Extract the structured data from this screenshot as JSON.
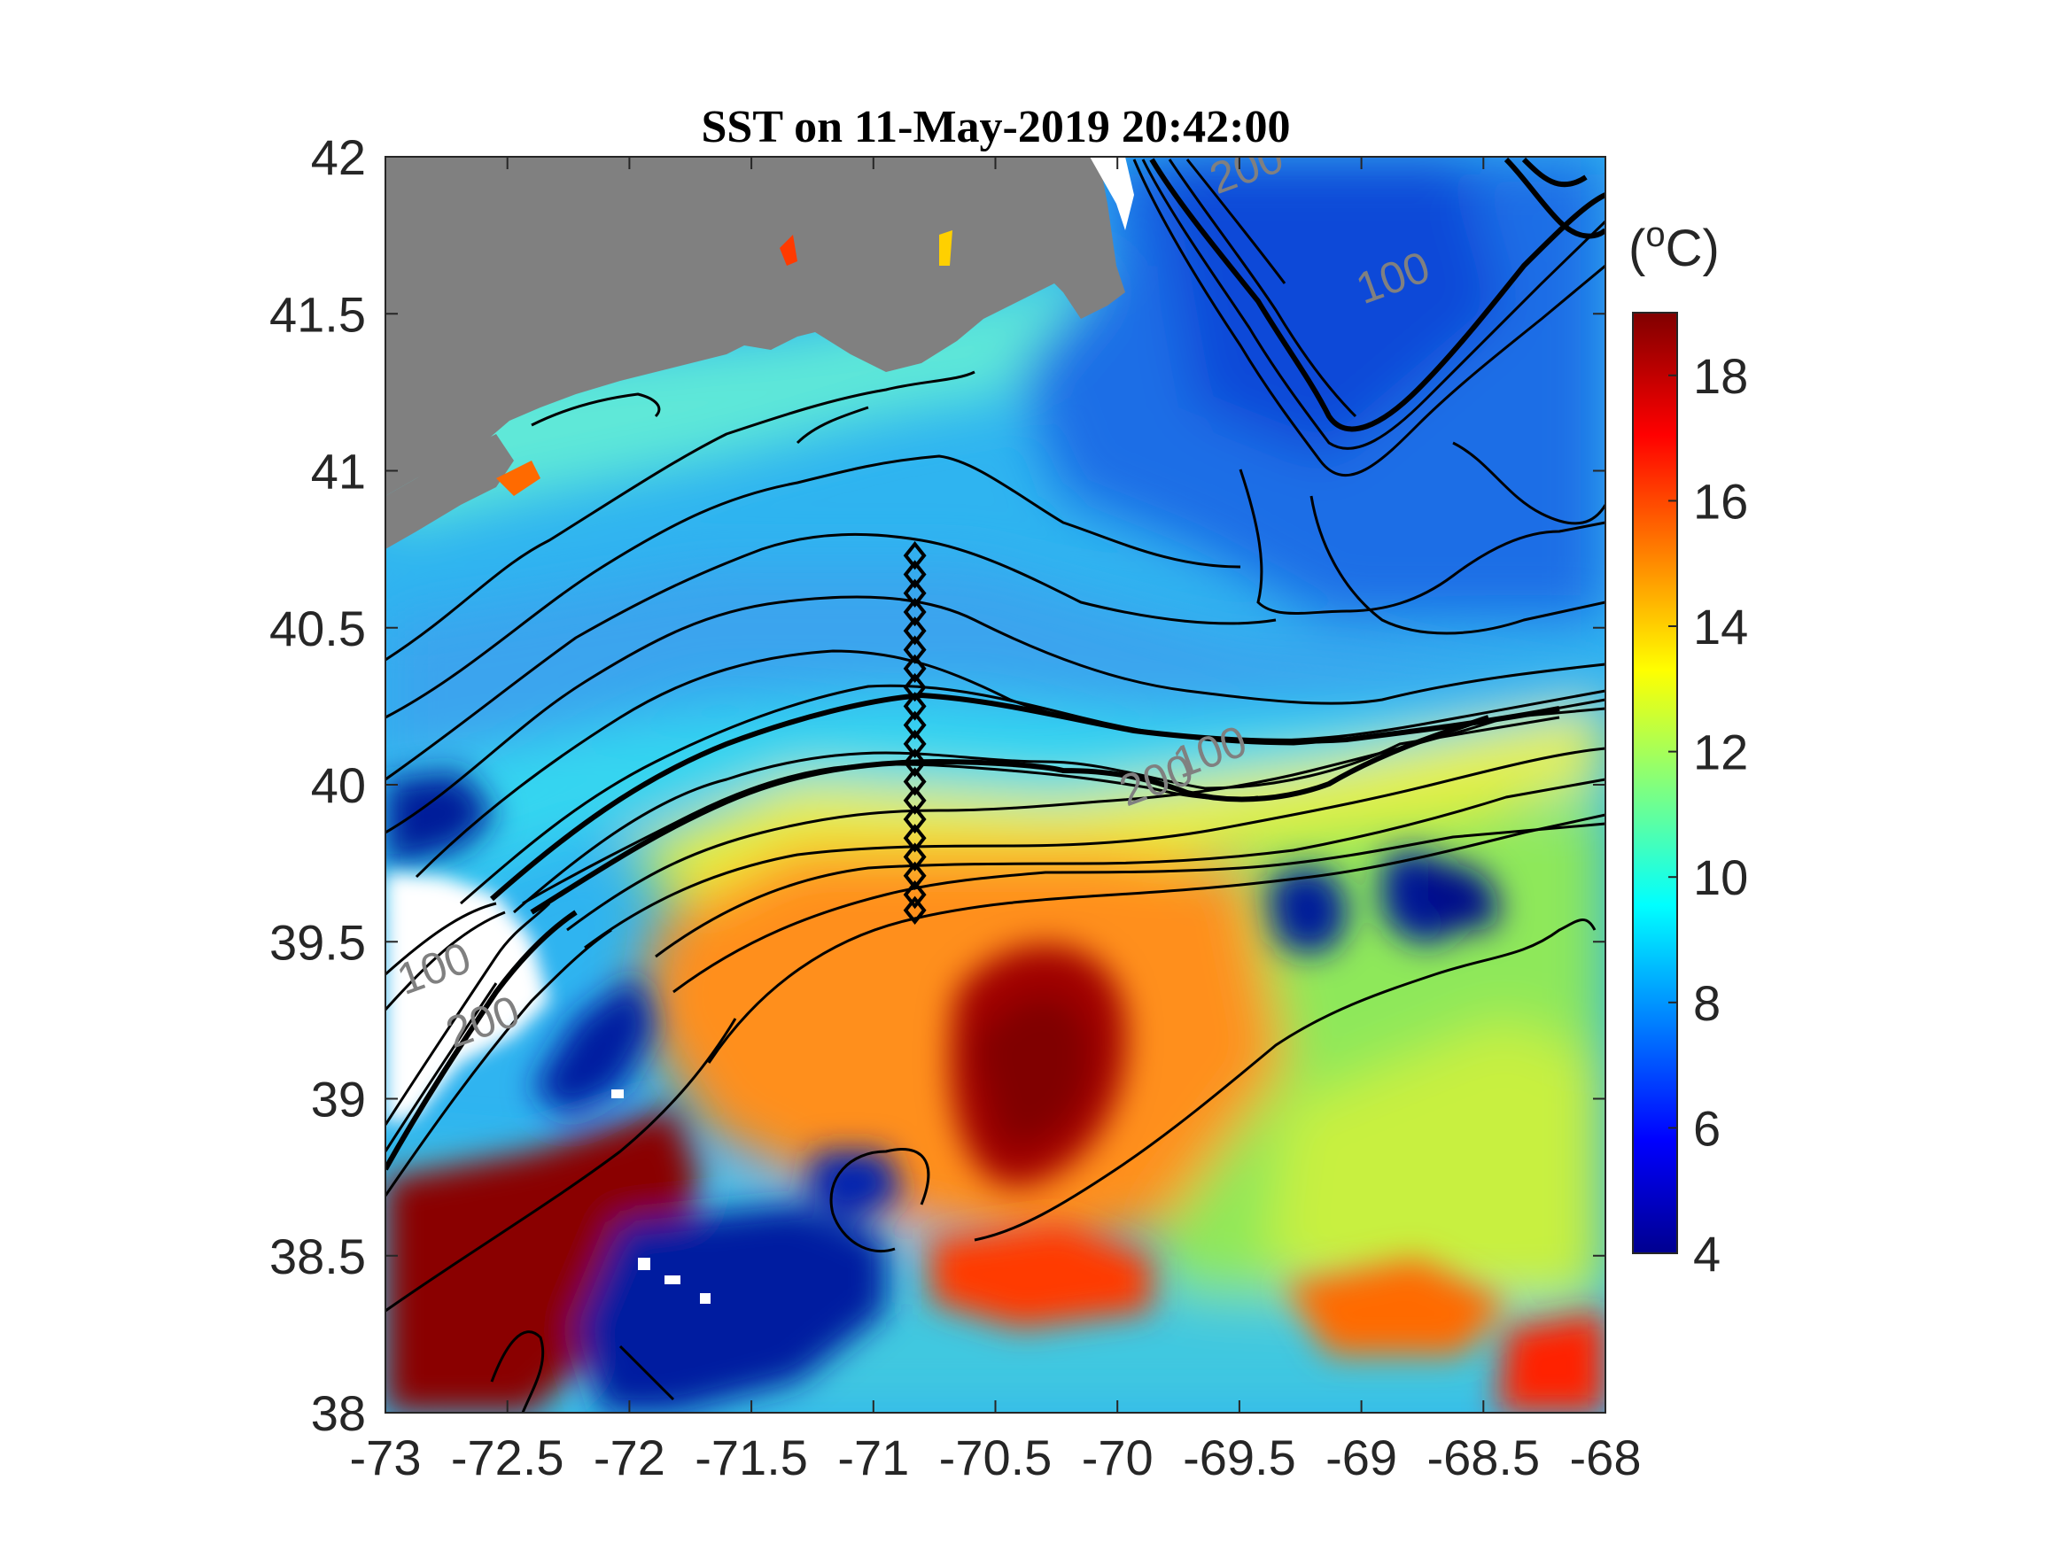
{
  "figure": {
    "title": "SST on 11-May-2019 20:42:00"
  },
  "map": {
    "lon_range": [
      -73,
      -68
    ],
    "lat_range": [
      38,
      42
    ],
    "x_ticks": [
      -73,
      -72.5,
      -72,
      -71.5,
      -71,
      -70.5,
      -70,
      -69.5,
      -69,
      -68.5,
      -68
    ],
    "x_tick_labels": [
      "-73",
      "-72.5",
      "-72",
      "-71.5",
      "-71",
      "-70.5",
      "-70",
      "-69.5",
      "-69",
      "-68.5",
      "-68"
    ],
    "y_ticks": [
      38,
      38.5,
      39,
      39.5,
      40,
      40.5,
      41,
      41.5,
      42
    ],
    "y_tick_labels": [
      "38",
      "38.5",
      "39",
      "39.5",
      "40",
      "40.5",
      "41",
      "41.5",
      "42"
    ],
    "land_color": "#808080",
    "contour_color": "#000000",
    "contour_labels": [
      {
        "text": "200",
        "lon": -69.45,
        "lat": 41.92
      },
      {
        "text": "100",
        "lon": -68.85,
        "lat": 41.57
      },
      {
        "text": "100",
        "lon": -69.6,
        "lat": 40.06
      },
      {
        "text": "200",
        "lon": -69.82,
        "lat": 39.97
      },
      {
        "text": "100",
        "lon": -72.78,
        "lat": 39.37
      },
      {
        "text": "200",
        "lon": -72.58,
        "lat": 39.2
      }
    ],
    "station_marker": "diamond",
    "stations": [
      {
        "lon": -70.83,
        "lat": 40.73
      },
      {
        "lon": -70.83,
        "lat": 40.67
      },
      {
        "lon": -70.83,
        "lat": 40.61
      },
      {
        "lon": -70.83,
        "lat": 40.55
      },
      {
        "lon": -70.83,
        "lat": 40.49
      },
      {
        "lon": -70.83,
        "lat": 40.43
      },
      {
        "lon": -70.83,
        "lat": 40.37
      },
      {
        "lon": -70.83,
        "lat": 40.31
      },
      {
        "lon": -70.83,
        "lat": 40.25
      },
      {
        "lon": -70.83,
        "lat": 40.19
      },
      {
        "lon": -70.83,
        "lat": 40.13
      },
      {
        "lon": -70.83,
        "lat": 40.07
      },
      {
        "lon": -70.83,
        "lat": 40.01
      },
      {
        "lon": -70.83,
        "lat": 39.95
      },
      {
        "lon": -70.83,
        "lat": 39.89
      },
      {
        "lon": -70.83,
        "lat": 39.83
      },
      {
        "lon": -70.83,
        "lat": 39.77
      },
      {
        "lon": -70.83,
        "lat": 39.71
      },
      {
        "lon": -70.83,
        "lat": 39.65
      },
      {
        "lon": -70.83,
        "lat": 39.6
      }
    ]
  },
  "colorbar": {
    "unit_label": "(°C)",
    "unit_base": "(",
    "unit_sup": "o",
    "unit_rest": "C)",
    "range": [
      4,
      19
    ],
    "ticks": [
      4,
      6,
      8,
      10,
      12,
      14,
      16,
      18
    ],
    "tick_labels": [
      "4",
      "6",
      "8",
      "10",
      "12",
      "14",
      "16",
      "18"
    ],
    "colormap": "jet",
    "colormap_stops": [
      "#00008f",
      "#0000ff",
      "#0080ff",
      "#00ffff",
      "#80ff80",
      "#ffff00",
      "#ff8000",
      "#ff0000",
      "#800000"
    ]
  }
}
